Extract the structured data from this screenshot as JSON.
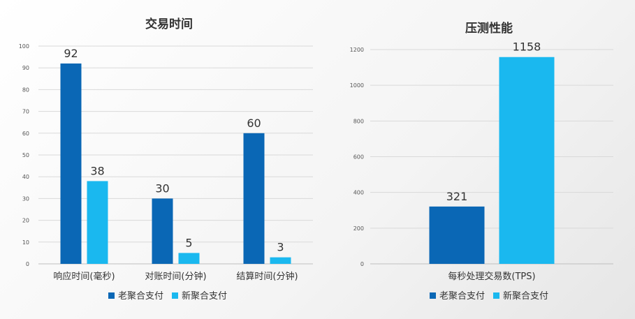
{
  "chart_data": [
    {
      "type": "bar",
      "title": "交易时间",
      "categories": [
        "响应时间(毫秒)",
        "对账时间(分钟)",
        "结算时间(分钟)"
      ],
      "series": [
        {
          "name": "老聚合支付",
          "values": [
            92,
            30,
            60
          ],
          "color": "#0a67b5"
        },
        {
          "name": "新聚合支付",
          "values": [
            38,
            5,
            3
          ],
          "color": "#1ab8ef"
        }
      ],
      "ylim": [
        0,
        100
      ],
      "yticks": [
        0,
        10,
        20,
        30,
        40,
        50,
        60,
        70,
        80,
        90,
        100
      ],
      "grid": true,
      "legend": "bottom",
      "data_labels": true
    },
    {
      "type": "bar",
      "title": "压测性能",
      "categories": [
        "每秒处理交易数(TPS)"
      ],
      "series": [
        {
          "name": "老聚合支付",
          "values": [
            321
          ],
          "color": "#0a67b5"
        },
        {
          "name": "新聚合支付",
          "values": [
            1158
          ],
          "color": "#1ab8ef"
        }
      ],
      "ylim": [
        0,
        1200
      ],
      "yticks": [
        0,
        200,
        400,
        600,
        800,
        1000,
        1200
      ],
      "grid": true,
      "legend": "bottom",
      "data_labels": true
    }
  ]
}
